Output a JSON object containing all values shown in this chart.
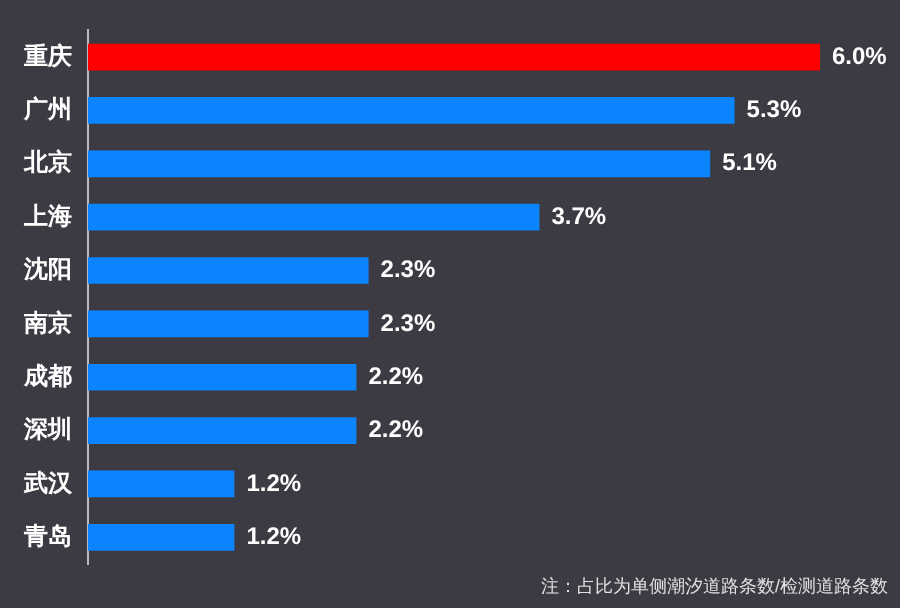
{
  "chart_data": {
    "type": "bar",
    "orientation": "horizontal",
    "categories": [
      "重庆",
      "广州",
      "北京",
      "上海",
      "沈阳",
      "南京",
      "成都",
      "深圳",
      "武汉",
      "青岛"
    ],
    "values": [
      6.0,
      5.3,
      5.1,
      3.7,
      2.3,
      2.3,
      2.2,
      2.2,
      1.2,
      1.2
    ],
    "value_labels": [
      "6.0%",
      "5.3%",
      "5.1%",
      "3.7%",
      "2.3%",
      "2.3%",
      "2.2%",
      "2.2%",
      "1.2%",
      "1.2%"
    ],
    "colors": [
      "#ff0000",
      "#0a84ff",
      "#0a84ff",
      "#0a84ff",
      "#0a84ff",
      "#0a84ff",
      "#0a84ff",
      "#0a84ff",
      "#0a84ff",
      "#0a84ff"
    ],
    "annotations": [
      "注：占比为单侧潮汐道路条数/检测道路条数"
    ]
  }
}
